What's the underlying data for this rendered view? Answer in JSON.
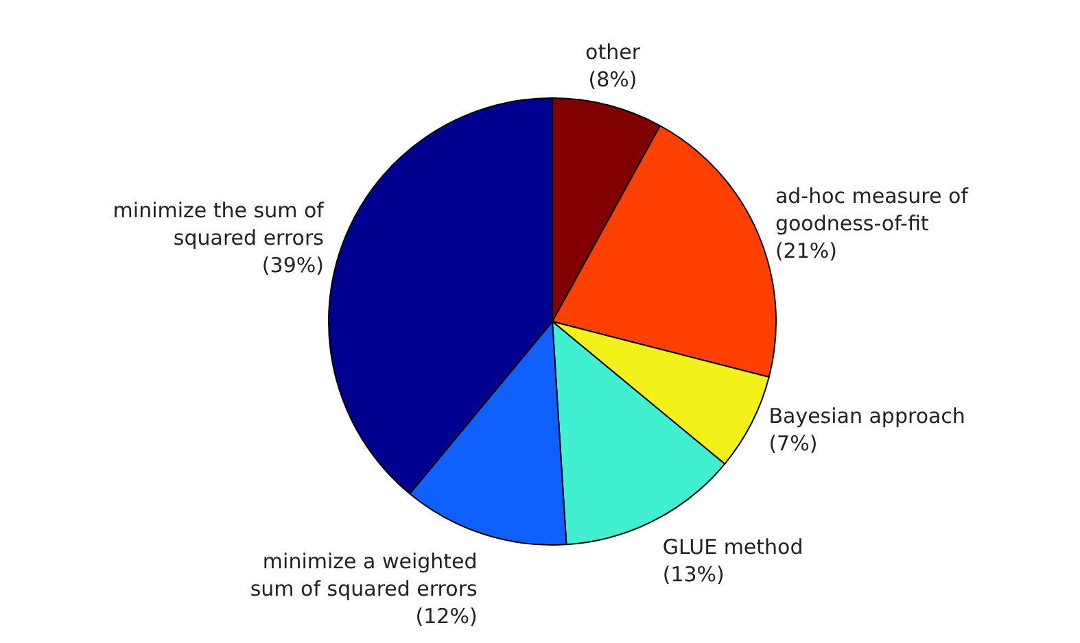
{
  "chart_data": {
    "type": "pie",
    "categories": [
      "other",
      "ad-hoc measure of goodness-of-fit",
      "Bayesian approach",
      "GLUE method",
      "minimize a weighted sum of squared errors",
      "minimize the sum of squared errors"
    ],
    "values": [
      8,
      21,
      7,
      13,
      12,
      39
    ],
    "colors": [
      "#800000",
      "#ff4000",
      "#f2f21a",
      "#40f0d0",
      "#1060ff",
      "#000090"
    ],
    "value_labels": [
      "(8%)",
      "(21%)",
      "(7%)",
      "(13%)",
      "(12%)",
      "(39%)"
    ],
    "legend": false
  }
}
